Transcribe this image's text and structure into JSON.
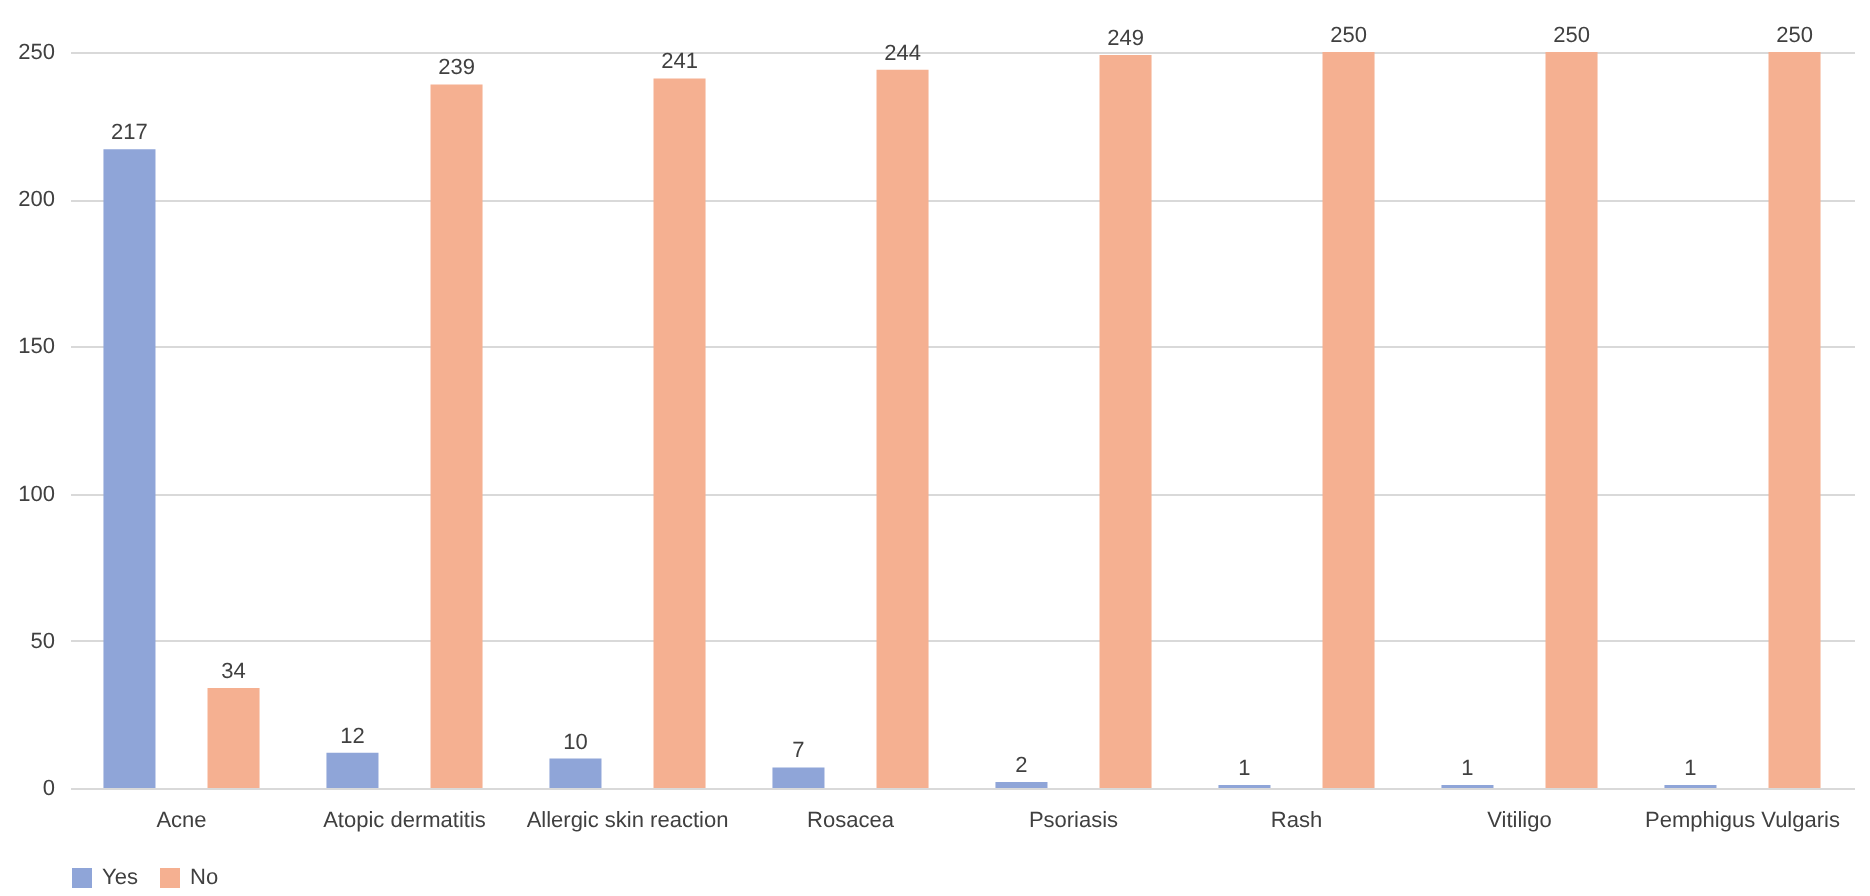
{
  "chart_data": {
    "type": "bar",
    "categories": [
      "Acne",
      "Atopic dermatitis",
      "Allergic skin reaction",
      "Rosacea",
      "Psoriasis",
      "Rash",
      "Vitiligo",
      "Pemphigus Vulgaris"
    ],
    "series": [
      {
        "name": "Yes",
        "color": "#8fa5d8",
        "values": [
          217,
          12,
          10,
          7,
          2,
          1,
          1,
          1
        ]
      },
      {
        "name": "No",
        "color": "#f5b091",
        "values": [
          34,
          239,
          241,
          244,
          249,
          250,
          250,
          250
        ]
      }
    ],
    "ylim": [
      0,
      250
    ],
    "yticks": [
      0,
      50,
      100,
      150,
      200,
      250
    ],
    "grid": "y",
    "legend": "bottom",
    "data_labels": true
  }
}
